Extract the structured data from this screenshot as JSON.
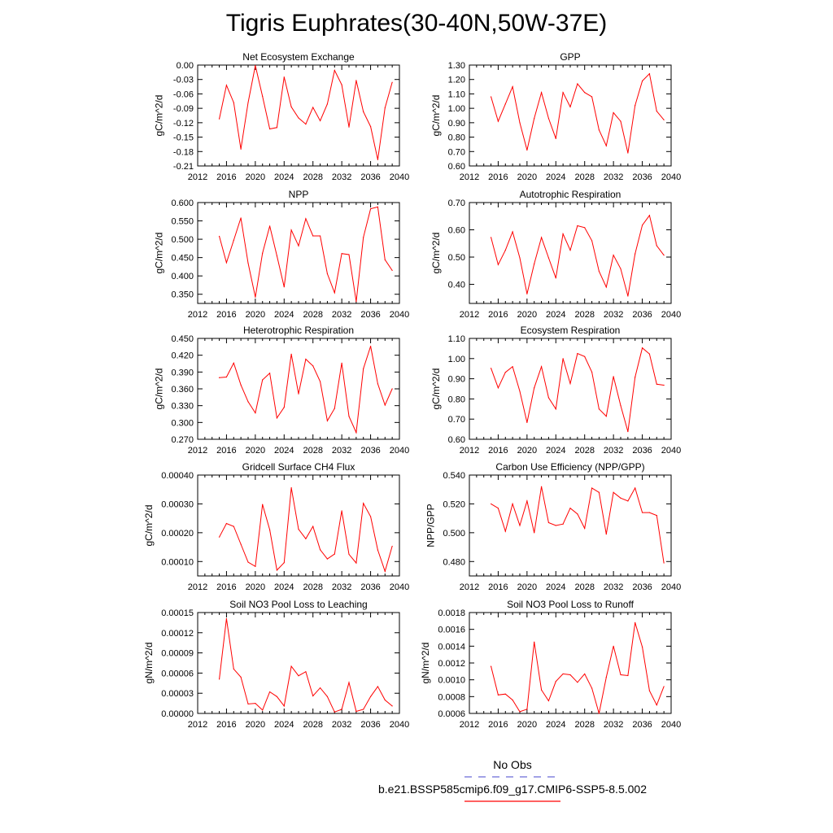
{
  "page": {
    "title": "Tigris Euphrates(30-40N,50W-37E)",
    "colors": {
      "model_line": "#ff0000",
      "obs_line": "#6b6bd6",
      "axes": "#000000"
    }
  },
  "legend": {
    "obs_label": "No Obs",
    "model_label": "b.e21.BSSP585cmip6.f09_g17.CMIP6-SSP5-8.5.002"
  },
  "chart_data": [
    {
      "type": "line",
      "title": "Net Ecosystem Exchange",
      "xlabel": "",
      "ylabel": "gC/m^2/d",
      "xlim": [
        2012,
        2040
      ],
      "xticks": [
        2012,
        2016,
        2020,
        2024,
        2028,
        2032,
        2036,
        2040
      ],
      "ylim": [
        -0.21,
        0.0
      ],
      "yticks": [
        "0.00",
        "-0.03",
        "-0.06",
        "-0.09",
        "-0.12",
        "-0.15",
        "-0.18",
        "-0.21"
      ],
      "x": [
        2015,
        2016,
        2017,
        2018,
        2019,
        2020,
        2021,
        2022,
        2023,
        2024,
        2025,
        2026,
        2027,
        2028,
        2029,
        2030,
        2031,
        2032,
        2033,
        2034,
        2035,
        2036,
        2037,
        2038,
        2039
      ],
      "series": [
        {
          "values": [
            -0.112,
            -0.042,
            -0.078,
            -0.175,
            -0.078,
            -0.001,
            -0.065,
            -0.133,
            -0.13,
            -0.025,
            -0.087,
            -0.11,
            -0.123,
            -0.088,
            -0.116,
            -0.081,
            -0.011,
            -0.041,
            -0.129,
            -0.032,
            -0.097,
            -0.128,
            -0.197,
            -0.089,
            -0.036
          ]
        }
      ]
    },
    {
      "type": "line",
      "title": "GPP",
      "xlabel": "",
      "ylabel": "gC/m^2/d",
      "xlim": [
        2012,
        2040
      ],
      "xticks": [
        2012,
        2016,
        2020,
        2024,
        2028,
        2032,
        2036,
        2040
      ],
      "ylim": [
        0.6,
        1.3
      ],
      "yticks": [
        "1.30",
        "1.20",
        "1.10",
        "1.00",
        "0.90",
        "0.80",
        "0.70",
        "0.60"
      ],
      "x": [
        2015,
        2016,
        2017,
        2018,
        2019,
        2020,
        2021,
        2022,
        2023,
        2024,
        2025,
        2026,
        2027,
        2028,
        2029,
        2030,
        2031,
        2032,
        2033,
        2034,
        2035,
        2036,
        2037,
        2038,
        2039
      ],
      "series": [
        {
          "values": [
            1.08,
            0.91,
            1.03,
            1.15,
            0.9,
            0.71,
            0.93,
            1.11,
            0.93,
            0.79,
            1.11,
            1.01,
            1.17,
            1.11,
            1.08,
            0.85,
            0.74,
            0.97,
            0.91,
            0.69,
            1.02,
            1.19,
            1.24,
            0.98,
            0.92
          ]
        }
      ]
    },
    {
      "type": "line",
      "title": "NPP",
      "xlabel": "",
      "ylabel": "gC/m^2/d",
      "xlim": [
        2012,
        2040
      ],
      "xticks": [
        2012,
        2016,
        2020,
        2024,
        2028,
        2032,
        2036,
        2040
      ],
      "ylim": [
        0.325,
        0.6
      ],
      "yticks": [
        "0.600",
        "0.550",
        "0.500",
        "0.450",
        "0.400",
        "0.350"
      ],
      "x": [
        2015,
        2016,
        2017,
        2018,
        2019,
        2020,
        2021,
        2022,
        2023,
        2024,
        2025,
        2026,
        2027,
        2028,
        2029,
        2030,
        2031,
        2032,
        2033,
        2034,
        2035,
        2036,
        2037,
        2038,
        2039
      ],
      "series": [
        {
          "values": [
            0.508,
            0.436,
            0.497,
            0.558,
            0.435,
            0.342,
            0.462,
            0.536,
            0.455,
            0.37,
            0.525,
            0.482,
            0.556,
            0.509,
            0.509,
            0.406,
            0.354,
            0.461,
            0.458,
            0.33,
            0.505,
            0.583,
            0.588,
            0.444,
            0.415
          ]
        }
      ]
    },
    {
      "type": "line",
      "title": "Autotrophic Respiration",
      "xlabel": "",
      "ylabel": "gC/m^2/d",
      "xlim": [
        2012,
        2040
      ],
      "xticks": [
        2012,
        2016,
        2020,
        2024,
        2028,
        2032,
        2036,
        2040
      ],
      "ylim": [
        0.33,
        0.7
      ],
      "yticks": [
        "0.70",
        "0.60",
        "0.50",
        "0.40"
      ],
      "x": [
        2015,
        2016,
        2017,
        2018,
        2019,
        2020,
        2021,
        2022,
        2023,
        2024,
        2025,
        2026,
        2027,
        2028,
        2029,
        2030,
        2031,
        2032,
        2033,
        2034,
        2035,
        2036,
        2037,
        2038,
        2039
      ],
      "series": [
        {
          "values": [
            0.572,
            0.472,
            0.525,
            0.593,
            0.497,
            0.365,
            0.475,
            0.572,
            0.497,
            0.423,
            0.585,
            0.525,
            0.615,
            0.608,
            0.56,
            0.448,
            0.39,
            0.507,
            0.457,
            0.357,
            0.512,
            0.617,
            0.653,
            0.542,
            0.507
          ]
        }
      ]
    },
    {
      "type": "line",
      "title": "Heterotrophic Respiration",
      "xlabel": "",
      "ylabel": "gC/m^2/d",
      "xlim": [
        2012,
        2040
      ],
      "xticks": [
        2012,
        2016,
        2020,
        2024,
        2028,
        2032,
        2036,
        2040
      ],
      "ylim": [
        0.27,
        0.45
      ],
      "yticks": [
        "0.450",
        "0.420",
        "0.390",
        "0.360",
        "0.330",
        "0.300",
        "0.270"
      ],
      "x": [
        2015,
        2016,
        2017,
        2018,
        2019,
        2020,
        2021,
        2022,
        2023,
        2024,
        2025,
        2026,
        2027,
        2028,
        2029,
        2030,
        2031,
        2032,
        2033,
        2034,
        2035,
        2036,
        2037,
        2038,
        2039
      ],
      "series": [
        {
          "values": [
            0.38,
            0.381,
            0.406,
            0.367,
            0.337,
            0.317,
            0.376,
            0.388,
            0.308,
            0.327,
            0.422,
            0.351,
            0.413,
            0.401,
            0.373,
            0.303,
            0.325,
            0.406,
            0.311,
            0.282,
            0.396,
            0.436,
            0.369,
            0.331,
            0.36
          ]
        }
      ]
    },
    {
      "type": "line",
      "title": "Ecosystem Respiration",
      "xlabel": "",
      "ylabel": "gC/m^2/d",
      "xlim": [
        2012,
        2040
      ],
      "xticks": [
        2012,
        2016,
        2020,
        2024,
        2028,
        2032,
        2036,
        2040
      ],
      "ylim": [
        0.6,
        1.1
      ],
      "yticks": [
        "1.10",
        "1.00",
        "0.90",
        "0.80",
        "0.70",
        "0.60"
      ],
      "x": [
        2015,
        2016,
        2017,
        2018,
        2019,
        2020,
        2021,
        2022,
        2023,
        2024,
        2025,
        2026,
        2027,
        2028,
        2029,
        2030,
        2031,
        2032,
        2033,
        2034,
        2035,
        2036,
        2037,
        2038,
        2039
      ],
      "series": [
        {
          "values": [
            0.952,
            0.855,
            0.932,
            0.96,
            0.838,
            0.683,
            0.855,
            0.96,
            0.806,
            0.75,
            1.0,
            0.876,
            1.025,
            1.01,
            0.933,
            0.75,
            0.714,
            0.911,
            0.767,
            0.638,
            0.908,
            1.053,
            1.023,
            0.873,
            0.868
          ]
        }
      ]
    },
    {
      "type": "line",
      "title": "Gridcell Surface CH4 Flux",
      "xlabel": "",
      "ylabel": "gC/m^2/d",
      "xlim": [
        2012,
        2040
      ],
      "xticks": [
        2012,
        2016,
        2020,
        2024,
        2028,
        2032,
        2036,
        2040
      ],
      "ylim": [
        5e-05,
        0.0004
      ],
      "yticks": [
        "0.00040",
        "0.00030",
        "0.00020",
        "0.00010"
      ],
      "x": [
        2015,
        2016,
        2017,
        2018,
        2019,
        2020,
        2021,
        2022,
        2023,
        2024,
        2025,
        2026,
        2027,
        2028,
        2029,
        2030,
        2031,
        2032,
        2033,
        2034,
        2035,
        2036,
        2037,
        2038,
        2039
      ],
      "series": [
        {
          "values": [
            0.000185,
            0.000232,
            0.000222,
            0.00016,
            9.8e-05,
            8.3e-05,
            0.000298,
            0.00021,
            7e-05,
            9.6e-05,
            0.000356,
            0.000212,
            0.000179,
            0.000222,
            0.000141,
            0.000109,
            0.000126,
            0.000276,
            0.000125,
            9.5e-05,
            0.000302,
            0.000256,
            0.00014,
            6.6e-05,
            0.000153
          ]
        }
      ]
    },
    {
      "type": "line",
      "title": "Carbon Use Efficiency (NPP/GPP)",
      "xlabel": "",
      "ylabel": "NPP/GPP",
      "xlim": [
        2012,
        2040
      ],
      "xticks": [
        2012,
        2016,
        2020,
        2024,
        2028,
        2032,
        2036,
        2040
      ],
      "ylim": [
        0.47,
        0.54
      ],
      "yticks": [
        "0.540",
        "0.520",
        "0.500",
        "0.480"
      ],
      "x": [
        2015,
        2016,
        2017,
        2018,
        2019,
        2020,
        2021,
        2022,
        2023,
        2024,
        2025,
        2026,
        2027,
        2028,
        2029,
        2030,
        2031,
        2032,
        2033,
        2034,
        2035,
        2036,
        2037,
        2038,
        2039
      ],
      "series": [
        {
          "values": [
            0.52,
            0.517,
            0.501,
            0.52,
            0.505,
            0.522,
            0.5,
            0.532,
            0.507,
            0.505,
            0.506,
            0.517,
            0.513,
            0.503,
            0.531,
            0.528,
            0.499,
            0.528,
            0.524,
            0.522,
            0.531,
            0.514,
            0.514,
            0.512,
            0.479
          ]
        }
      ]
    },
    {
      "type": "line",
      "title": "Soil NO3 Pool Loss to Leaching",
      "xlabel": "",
      "ylabel": "gN/m^2/d",
      "xlim": [
        2012,
        2040
      ],
      "xticks": [
        2012,
        2016,
        2020,
        2024,
        2028,
        2032,
        2036,
        2040
      ],
      "ylim": [
        0.0,
        0.00015
      ],
      "yticks": [
        "0.00015",
        "0.00012",
        "0.00009",
        "0.00006",
        "0.00003",
        "0.00000"
      ],
      "x": [
        2015,
        2016,
        2017,
        2018,
        2019,
        2020,
        2021,
        2022,
        2023,
        2024,
        2025,
        2026,
        2027,
        2028,
        2029,
        2030,
        2031,
        2032,
        2033,
        2034,
        2035,
        2036,
        2037,
        2038,
        2039
      ],
      "series": [
        {
          "values": [
            5.1e-05,
            0.000141,
            6.6e-05,
            5.4e-05,
            1.4e-05,
            1.5e-05,
            5e-06,
            3.2e-05,
            2.5e-05,
            1.1e-05,
            7e-05,
            5.6e-05,
            6.2e-05,
            2.6e-05,
            3.8e-05,
            2.5e-05,
            2e-06,
            6e-06,
            4.6e-05,
            3e-06,
            6e-06,
            2.5e-05,
            4e-05,
            2e-05,
            1.1e-05
          ]
        }
      ]
    },
    {
      "type": "line",
      "title": "Soil NO3 Pool Loss to Runoff",
      "xlabel": "",
      "ylabel": "gN/m^2/d",
      "xlim": [
        2012,
        2040
      ],
      "xticks": [
        2012,
        2016,
        2020,
        2024,
        2028,
        2032,
        2036,
        2040
      ],
      "ylim": [
        0.0006,
        0.0018
      ],
      "yticks": [
        "0.0018",
        "0.0016",
        "0.0014",
        "0.0012",
        "0.0010",
        "0.0008",
        "0.0006"
      ],
      "x": [
        2015,
        2016,
        2017,
        2018,
        2019,
        2020,
        2021,
        2022,
        2023,
        2024,
        2025,
        2026,
        2027,
        2028,
        2029,
        2030,
        2031,
        2032,
        2033,
        2034,
        2035,
        2036,
        2037,
        2038,
        2039
      ],
      "series": [
        {
          "values": [
            0.00116,
            0.00082,
            0.00083,
            0.00076,
            0.00062,
            0.00065,
            0.00145,
            0.00088,
            0.00075,
            0.00098,
            0.00107,
            0.00106,
            0.00097,
            0.00107,
            0.0009,
            0.0006,
            0.00103,
            0.0014,
            0.00106,
            0.00105,
            0.00168,
            0.00139,
            0.00087,
            0.0007,
            0.00092
          ]
        }
      ]
    }
  ]
}
